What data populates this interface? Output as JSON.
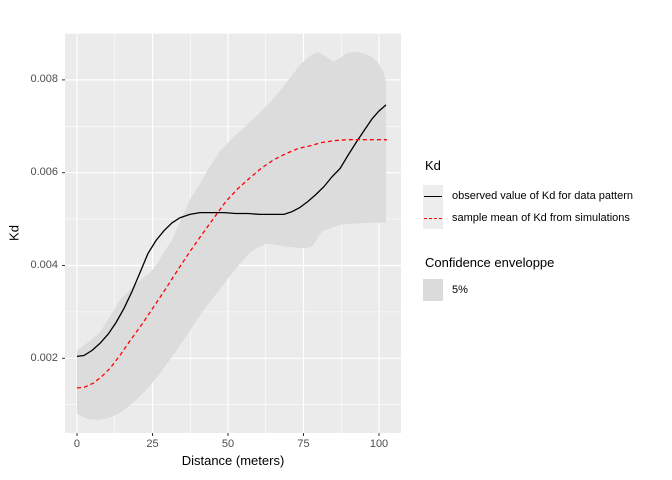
{
  "chart_data": {
    "type": "line",
    "title": "",
    "x_axis": {
      "title": "Distance (meters)",
      "ticks": [
        {
          "v": 0,
          "label": "0"
        },
        {
          "v": 25,
          "label": "25"
        },
        {
          "v": 50,
          "label": "50"
        },
        {
          "v": 75,
          "label": "75"
        },
        {
          "v": 100,
          "label": "100"
        }
      ],
      "minor": [
        12.5,
        37.5,
        62.5,
        87.5
      ],
      "range": [
        -3.97,
        107.28
      ]
    },
    "y_axis": {
      "title": "Kd",
      "ticks": [
        {
          "v": 0.002,
          "label": "0.002"
        },
        {
          "v": 0.004,
          "label": "0.004"
        },
        {
          "v": 0.006,
          "label": "0.006"
        },
        {
          "v": 0.008,
          "label": "0.008"
        }
      ],
      "minor": [
        0.001,
        0.003,
        0.005,
        0.007,
        0.009
      ],
      "range": [
        0.00039,
        0.00901
      ]
    },
    "panel_background": "#EBEBEB",
    "gridline_color": "#FFFFFF",
    "tick_color": "#333333",
    "tick_label_color": "#4D4D4D",
    "series": [
      {
        "name": "observed value of Kd for data pattern",
        "color": "#000000",
        "style": "solid",
        "points": [
          [
            0,
            0.00204
          ],
          [
            2.3,
            0.00206
          ],
          [
            5,
            0.00217
          ],
          [
            7.6,
            0.00232
          ],
          [
            10.3,
            0.00252
          ],
          [
            12.9,
            0.00277
          ],
          [
            15.6,
            0.00308
          ],
          [
            18.2,
            0.00344
          ],
          [
            20.9,
            0.00385
          ],
          [
            23.5,
            0.00426
          ],
          [
            26.2,
            0.00454
          ],
          [
            28.8,
            0.00475
          ],
          [
            31.5,
            0.00492
          ],
          [
            34.1,
            0.00503
          ],
          [
            37.4,
            0.0051
          ],
          [
            40.7,
            0.00514
          ],
          [
            44.7,
            0.00514
          ],
          [
            48.7,
            0.00514
          ],
          [
            52.6,
            0.00512
          ],
          [
            56.6,
            0.00512
          ],
          [
            60.6,
            0.0051
          ],
          [
            64.6,
            0.0051
          ],
          [
            68.5,
            0.0051
          ],
          [
            71.2,
            0.00516
          ],
          [
            73.8,
            0.00525
          ],
          [
            76.5,
            0.00538
          ],
          [
            79.1,
            0.00553
          ],
          [
            81.8,
            0.0057
          ],
          [
            84.4,
            0.00591
          ],
          [
            87.1,
            0.00609
          ],
          [
            89.7,
            0.00637
          ],
          [
            92.4,
            0.00665
          ],
          [
            95,
            0.0069
          ],
          [
            97.7,
            0.00716
          ],
          [
            100,
            0.00733
          ],
          [
            102.3,
            0.00746
          ]
        ]
      },
      {
        "name": "sample mean of Kd from simulations",
        "color": "#FF0000",
        "style": "dashed",
        "points": [
          [
            0,
            0.00136
          ],
          [
            2.6,
            0.00138
          ],
          [
            5.3,
            0.00146
          ],
          [
            7.9,
            0.00159
          ],
          [
            10.9,
            0.00178
          ],
          [
            14.2,
            0.00206
          ],
          [
            17.5,
            0.00237
          ],
          [
            21.5,
            0.00273
          ],
          [
            25.5,
            0.00312
          ],
          [
            29.5,
            0.00351
          ],
          [
            33.4,
            0.00391
          ],
          [
            37.4,
            0.0043
          ],
          [
            41.4,
            0.00467
          ],
          [
            45.4,
            0.00503
          ],
          [
            49.3,
            0.00538
          ],
          [
            53.3,
            0.00566
          ],
          [
            57.3,
            0.00589
          ],
          [
            61.3,
            0.00611
          ],
          [
            65.2,
            0.00628
          ],
          [
            69.2,
            0.00641
          ],
          [
            73.2,
            0.00652
          ],
          [
            77.2,
            0.00658
          ],
          [
            81.1,
            0.00665
          ],
          [
            85.1,
            0.00669
          ],
          [
            89.1,
            0.00671
          ],
          [
            93,
            0.00671
          ],
          [
            97,
            0.00671
          ],
          [
            102.6,
            0.00671
          ]
        ]
      }
    ],
    "envelope": {
      "name": "5%",
      "fill": "#DCDCDC",
      "upper": [
        [
          0,
          0.00217
        ],
        [
          3.6,
          0.00234
        ],
        [
          7.6,
          0.00256
        ],
        [
          10.9,
          0.0029
        ],
        [
          14.2,
          0.00325
        ],
        [
          17.5,
          0.00348
        ],
        [
          20.9,
          0.00368
        ],
        [
          24.2,
          0.00385
        ],
        [
          26.8,
          0.00406
        ],
        [
          29.1,
          0.00432
        ],
        [
          31.5,
          0.00454
        ],
        [
          33.4,
          0.00484
        ],
        [
          35.4,
          0.00514
        ],
        [
          37.4,
          0.00542
        ],
        [
          40.7,
          0.00576
        ],
        [
          44,
          0.00613
        ],
        [
          47.4,
          0.00647
        ],
        [
          51.3,
          0.00673
        ],
        [
          55.6,
          0.00699
        ],
        [
          59.9,
          0.00725
        ],
        [
          63.9,
          0.00751
        ],
        [
          67.2,
          0.00776
        ],
        [
          70.5,
          0.00804
        ],
        [
          73.8,
          0.00832
        ],
        [
          77.2,
          0.00852
        ],
        [
          79.8,
          0.0086
        ],
        [
          82.5,
          0.0085
        ],
        [
          84.8,
          0.00839
        ],
        [
          87.1,
          0.00847
        ],
        [
          89.4,
          0.00858
        ],
        [
          92.1,
          0.0086
        ],
        [
          94.7,
          0.00858
        ],
        [
          97.4,
          0.0085
        ],
        [
          99.7,
          0.00837
        ],
        [
          101.3,
          0.00819
        ],
        [
          102.3,
          0.00798
        ]
      ],
      "lower": [
        [
          0,
          0.0008
        ],
        [
          3.6,
          0.00069
        ],
        [
          7,
          0.00067
        ],
        [
          10.3,
          0.00071
        ],
        [
          13.6,
          0.0008
        ],
        [
          16.9,
          0.00095
        ],
        [
          20.2,
          0.00114
        ],
        [
          23.5,
          0.00136
        ],
        [
          27.5,
          0.00168
        ],
        [
          32.5,
          0.00213
        ],
        [
          37.4,
          0.0026
        ],
        [
          42.4,
          0.00308
        ],
        [
          46.7,
          0.00344
        ],
        [
          50.7,
          0.00378
        ],
        [
          54,
          0.00404
        ],
        [
          57.3,
          0.00428
        ],
        [
          59.9,
          0.00439
        ],
        [
          62.9,
          0.00447
        ],
        [
          65.6,
          0.00445
        ],
        [
          68.9,
          0.00441
        ],
        [
          72.2,
          0.00439
        ],
        [
          75.5,
          0.00437
        ],
        [
          77.8,
          0.00441
        ],
        [
          81.1,
          0.00473
        ],
        [
          83.8,
          0.0048
        ],
        [
          87.1,
          0.00488
        ],
        [
          91.1,
          0.0049
        ],
        [
          97,
          0.00492
        ],
        [
          102.3,
          0.00492
        ]
      ]
    }
  },
  "legend": {
    "kd_title": "Kd",
    "kd_items": [
      {
        "label": "observed value of Kd for data pattern"
      },
      {
        "label": "sample mean of Kd from simulations"
      }
    ],
    "envelope_title": "Confidence enveloppe",
    "envelope_items": [
      {
        "label": "5%"
      }
    ],
    "key_background": "#EDEDED",
    "swatch_fill": "#DBDBDB"
  }
}
